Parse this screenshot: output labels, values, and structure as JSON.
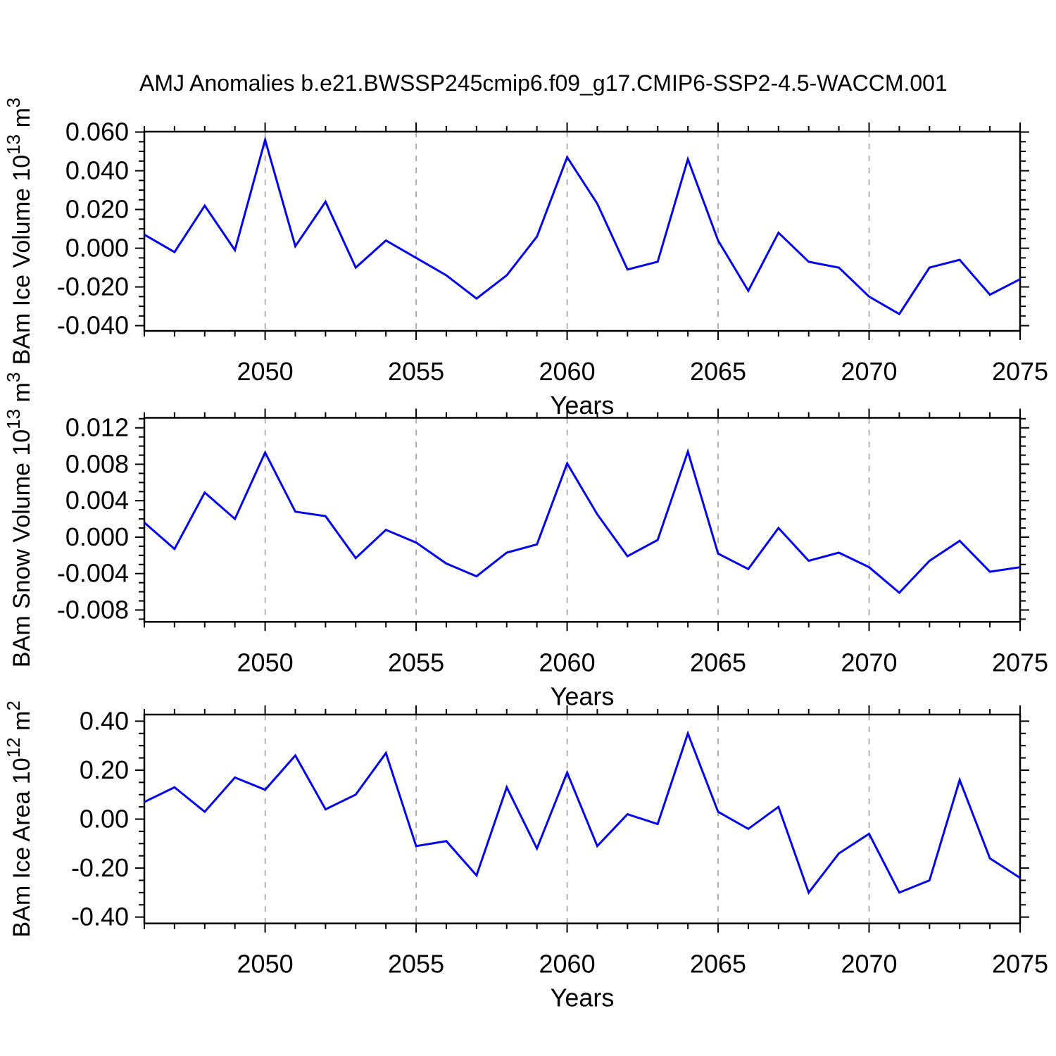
{
  "title": "AMJ Anomalies b.e21.BWSSP245cmip6.f09_g17.CMIP6-SSP2-4.5-WACCM.001",
  "xlabel": "Years",
  "colors": {
    "line": "#0202ee",
    "grid": "#969696",
    "axis": "#000000",
    "text": "#000000",
    "background": "#ffffff"
  },
  "x_tick_labels": [
    "2050",
    "2055",
    "2060",
    "2065",
    "2070",
    "2075"
  ],
  "x_tick_years": [
    2050,
    2055,
    2060,
    2065,
    2070,
    2075
  ],
  "grid_years": [
    2050,
    2055,
    2060,
    2065,
    2070
  ],
  "years": [
    2046,
    2047,
    2048,
    2049,
    2050,
    2051,
    2052,
    2053,
    2054,
    2055,
    2056,
    2057,
    2058,
    2059,
    2060,
    2061,
    2062,
    2063,
    2064,
    2065,
    2066,
    2067,
    2068,
    2069,
    2070,
    2071,
    2072,
    2073,
    2074,
    2075
  ],
  "chart_data": [
    {
      "type": "line",
      "series_name": "BAm Ice Volume anomaly",
      "ylabel": "BAm Ice Volume 10^13 m^3",
      "ylabel_parts": {
        "text": "BAm Ice Volume 10",
        "exp": "13",
        "unit": " m",
        "unit_exp": "3"
      },
      "xlabel": "Years",
      "xlim": [
        2046,
        2075
      ],
      "ylim": [
        -0.0427,
        0.0602
      ],
      "yticks": [
        0.06,
        0.04,
        0.02,
        0.0,
        -0.02,
        -0.04
      ],
      "ytick_labels": [
        "0.060",
        "0.040",
        "0.020",
        "0.000",
        "-0.020",
        "-0.040"
      ],
      "y_minor_step": 0.005,
      "grid": "vertical-dashed",
      "values": [
        0.007,
        -0.002,
        0.022,
        -0.001,
        0.056,
        0.001,
        0.024,
        -0.01,
        0.004,
        -0.005,
        -0.014,
        -0.026,
        -0.014,
        0.006,
        0.047,
        0.023,
        -0.011,
        -0.007,
        0.046,
        0.004,
        -0.022,
        0.008,
        -0.007,
        -0.01,
        -0.025,
        -0.034,
        -0.01,
        -0.006,
        -0.024,
        -0.016
      ]
    },
    {
      "type": "line",
      "series_name": "BAm Snow Volume anomaly",
      "ylabel": "BAm Snow Volume 10^13 m^3",
      "ylabel_parts": {
        "text": "BAm Snow Volume 10",
        "exp": "13",
        "unit": " m",
        "unit_exp": "3"
      },
      "xlabel": "Years",
      "xlim": [
        2046,
        2075
      ],
      "ylim": [
        -0.0093,
        0.0131
      ],
      "yticks": [
        0.012,
        0.008,
        0.004,
        0.0,
        -0.004,
        -0.008
      ],
      "ytick_labels": [
        "0.012",
        "0.008",
        "0.004",
        "0.000",
        "-0.004",
        "-0.008"
      ],
      "y_minor_step": 0.001,
      "grid": "vertical-dashed",
      "values": [
        0.0016,
        -0.0013,
        0.0049,
        0.002,
        0.0093,
        0.0028,
        0.0023,
        -0.0023,
        0.0008,
        -0.0006,
        -0.0029,
        -0.0043,
        -0.0017,
        -0.0008,
        0.0081,
        0.0025,
        -0.0021,
        -0.0003,
        0.0094,
        -0.0018,
        -0.0035,
        0.001,
        -0.0026,
        -0.0017,
        -0.0033,
        -0.0061,
        -0.0026,
        -0.0004,
        -0.0038,
        -0.0033
      ]
    },
    {
      "type": "line",
      "series_name": "BAm Ice Area anomaly",
      "ylabel": "BAm Ice Area 10^12 m^2",
      "ylabel_parts": {
        "text": "BAm Ice Area 10",
        "exp": "12",
        "unit": " m",
        "unit_exp": "2"
      },
      "xlabel": "Years",
      "xlim": [
        2046,
        2075
      ],
      "ylim": [
        -0.426,
        0.427
      ],
      "yticks": [
        0.4,
        0.2,
        0.0,
        -0.2,
        -0.4
      ],
      "ytick_labels": [
        "0.40",
        "0.20",
        "0.00",
        "-0.20",
        "-0.40"
      ],
      "y_minor_step": 0.05,
      "grid": "vertical-dashed",
      "values": [
        0.07,
        0.13,
        0.03,
        0.17,
        0.12,
        0.26,
        0.04,
        0.1,
        0.27,
        -0.11,
        -0.09,
        -0.23,
        0.13,
        -0.12,
        0.19,
        -0.11,
        0.02,
        -0.02,
        0.35,
        0.03,
        -0.04,
        0.05,
        -0.3,
        -0.14,
        -0.06,
        -0.3,
        -0.25,
        0.16,
        -0.16,
        -0.24
      ]
    }
  ]
}
